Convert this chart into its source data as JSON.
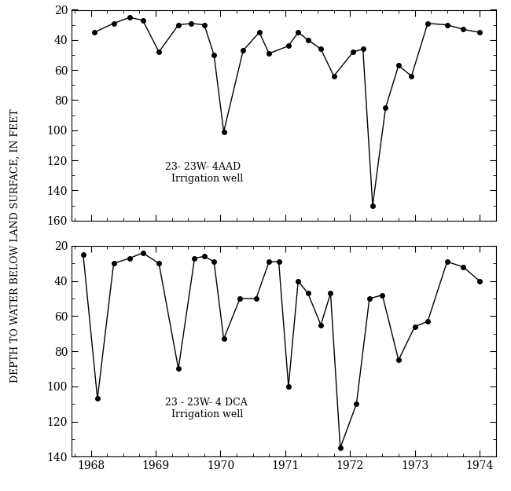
{
  "top_chart": {
    "label": "23- 23W- 4AAD\n  Irrigation well",
    "ylim": [
      160,
      20
    ],
    "yticks": [
      20,
      40,
      60,
      80,
      100,
      120,
      140,
      160
    ],
    "data_x": [
      1968.05,
      1968.35,
      1968.6,
      1968.8,
      1969.05,
      1969.35,
      1969.55,
      1969.75,
      1969.9,
      1970.05,
      1970.35,
      1970.6,
      1970.75,
      1971.05,
      1971.2,
      1971.35,
      1971.55,
      1971.75,
      1972.05,
      1972.2,
      1972.35,
      1972.55,
      1972.75,
      1972.95,
      1973.2,
      1973.5,
      1973.75,
      1974.0
    ],
    "data_y": [
      35,
      29,
      25,
      27,
      48,
      30,
      29,
      30,
      50,
      101,
      47,
      35,
      49,
      44,
      35,
      40,
      46,
      64,
      48,
      46,
      150,
      85,
      57,
      64,
      29,
      30,
      33,
      35
    ]
  },
  "bottom_chart": {
    "label": "23 - 23W- 4 DCA\n  Irrigation well",
    "ylim": [
      140,
      20
    ],
    "yticks": [
      20,
      40,
      60,
      80,
      100,
      120,
      140
    ],
    "data_x": [
      1967.88,
      1968.1,
      1968.35,
      1968.6,
      1968.8,
      1969.05,
      1969.35,
      1969.6,
      1969.75,
      1969.9,
      1970.05,
      1970.3,
      1970.55,
      1970.75,
      1970.9,
      1971.05,
      1971.2,
      1971.35,
      1971.55,
      1971.7,
      1971.85,
      1972.1,
      1972.3,
      1972.5,
      1972.75,
      1973.0,
      1973.2,
      1973.5,
      1973.75,
      1974.0
    ],
    "data_y": [
      25,
      107,
      30,
      27,
      24,
      30,
      90,
      27,
      26,
      29,
      73,
      50,
      50,
      29,
      29,
      100,
      40,
      47,
      65,
      47,
      135,
      110,
      50,
      48,
      85,
      66,
      63,
      29,
      32,
      40
    ]
  },
  "xlim": [
    1967.7,
    1974.25
  ],
  "xticks": [
    1968,
    1969,
    1970,
    1971,
    1972,
    1973,
    1974
  ],
  "ylabel": "DEPTH TO WATER BELOW LAND SURFACE, IN FEET",
  "background_color": "#ffffff",
  "line_color": "#000000",
  "marker_size": 4,
  "line_width": 1.0,
  "tick_fontsize": 10,
  "label_fontsize": 9
}
